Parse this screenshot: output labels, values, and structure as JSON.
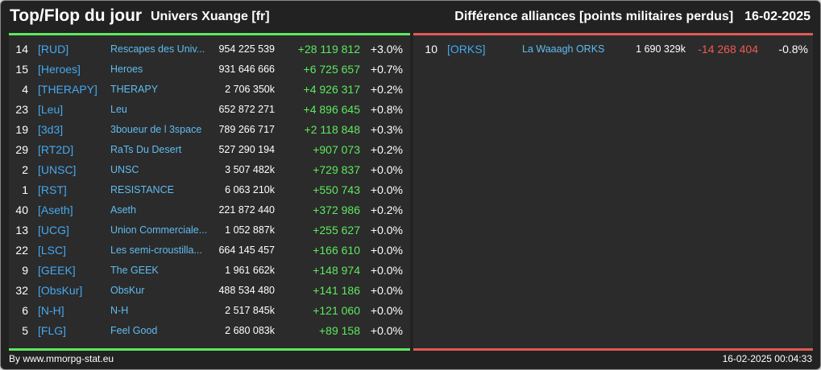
{
  "header": {
    "title": "Top/Flop du jour",
    "server": "Univers Xuange [fr]",
    "subtitle": "Différence alliances [points militaires perdus]",
    "date": "16-02-2025"
  },
  "top": [
    {
      "rank": "14",
      "tag": "[RUD]",
      "name": "Rescapes des Univ...",
      "points": "954 225 539",
      "diff": "+28 119 812",
      "pct": "+3.0%"
    },
    {
      "rank": "15",
      "tag": "[Heroes]",
      "name": "Heroes",
      "points": "931 646 666",
      "diff": "+6 725 657",
      "pct": "+0.7%"
    },
    {
      "rank": "4",
      "tag": "[THERAPY]",
      "name": "THERAPY",
      "points": "2 706 350k",
      "diff": "+4 926 317",
      "pct": "+0.2%"
    },
    {
      "rank": "23",
      "tag": "[Leu]",
      "name": "Leu",
      "points": "652 872 271",
      "diff": "+4 896 645",
      "pct": "+0.8%"
    },
    {
      "rank": "19",
      "tag": "[3d3]",
      "name": "3boueur de l 3space",
      "points": "789 266 717",
      "diff": "+2 118 848",
      "pct": "+0.3%"
    },
    {
      "rank": "29",
      "tag": "[RT2D]",
      "name": "RaTs Du Desert",
      "points": "527 290 194",
      "diff": "+907 073",
      "pct": "+0.2%"
    },
    {
      "rank": "2",
      "tag": "[UNSC]",
      "name": "UNSC",
      "points": "3 507 482k",
      "diff": "+729 837",
      "pct": "+0.0%"
    },
    {
      "rank": "1",
      "tag": "[RST]",
      "name": "RESISTANCE",
      "points": "6 063 210k",
      "diff": "+550 743",
      "pct": "+0.0%"
    },
    {
      "rank": "40",
      "tag": "[Aseth]",
      "name": "Aseth",
      "points": "221 872 440",
      "diff": "+372 986",
      "pct": "+0.2%"
    },
    {
      "rank": "13",
      "tag": "[UCG]",
      "name": "Union Commerciale...",
      "points": "1 052 887k",
      "diff": "+255 627",
      "pct": "+0.0%"
    },
    {
      "rank": "22",
      "tag": "[LSC]",
      "name": "Les semi-croustilla...",
      "points": "664 145 457",
      "diff": "+166 610",
      "pct": "+0.0%"
    },
    {
      "rank": "9",
      "tag": "[GEEK]",
      "name": "The GEEK",
      "points": "1 961 662k",
      "diff": "+148 974",
      "pct": "+0.0%"
    },
    {
      "rank": "32",
      "tag": "[ObsKur]",
      "name": "ObsKur",
      "points": "488 534 480",
      "diff": "+141 186",
      "pct": "+0.0%"
    },
    {
      "rank": "6",
      "tag": "[N-H]",
      "name": "N-H",
      "points": "2 517 845k",
      "diff": "+121 060",
      "pct": "+0.0%"
    },
    {
      "rank": "5",
      "tag": "[FLG]",
      "name": "Feel Good",
      "points": "2 680 083k",
      "diff": "+89 158",
      "pct": "+0.0%"
    }
  ],
  "flop": [
    {
      "rank": "10",
      "tag": "[ORKS]",
      "name": "La Waaagh ORKS",
      "points": "1 690 329k",
      "diff": "-14 268 404",
      "pct": "-0.8%"
    }
  ],
  "footer": {
    "credit": "By www.mmorpg-stat.eu",
    "timestamp": "16-02-2025 00:04:33"
  },
  "colors": {
    "positive": "#5ee85e",
    "negative": "#ee5a52",
    "tag": "#45a8f0",
    "name": "#5fbcf2",
    "background": "#222222"
  }
}
